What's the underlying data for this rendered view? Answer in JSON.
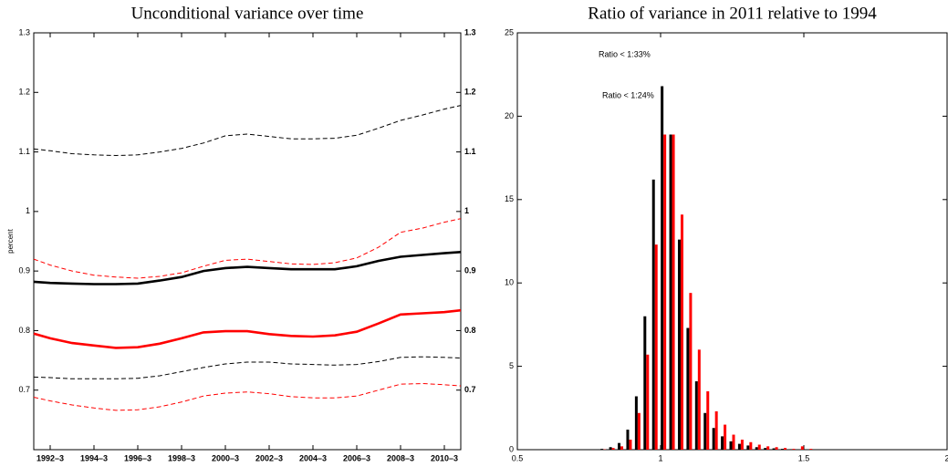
{
  "chart_data": [
    {
      "type": "line",
      "title": "Unconditional variance over time",
      "ylabel": "percent",
      "x": [
        1991.75,
        1992.5,
        1993.5,
        1994.5,
        1995.5,
        1996.5,
        1997.5,
        1998.5,
        1999.5,
        2000.5,
        2001.5,
        2002.5,
        2003.5,
        2004.5,
        2005.5,
        2006.5,
        2007.5,
        2008.5,
        2009.5,
        2010.5,
        2011.25
      ],
      "xlim": [
        1991.75,
        2011.25
      ],
      "xticks": [
        {
          "value": 1992.5,
          "label": "1992–3"
        },
        {
          "value": 1994.5,
          "label": "1994–3"
        },
        {
          "value": 1996.5,
          "label": "1996–3"
        },
        {
          "value": 1998.5,
          "label": "1998–3"
        },
        {
          "value": 2000.5,
          "label": "2000–3"
        },
        {
          "value": 2002.5,
          "label": "2002–3"
        },
        {
          "value": 2004.5,
          "label": "2004–3"
        },
        {
          "value": 2006.5,
          "label": "2006–3"
        },
        {
          "value": 2008.5,
          "label": "2008–3"
        },
        {
          "value": 2010.5,
          "label": "2010–3"
        }
      ],
      "ylim": [
        0.6,
        1.3
      ],
      "yticks": [
        0.7,
        0.8,
        0.9,
        1,
        1.1,
        1.2,
        1.3
      ],
      "right_ticks": true,
      "series": [
        {
          "color": "#000000",
          "style": "dashed",
          "values": [
            1.105,
            1.102,
            1.097,
            1.095,
            1.094,
            1.095,
            1.1,
            1.106,
            1.115,
            1.127,
            1.13,
            1.126,
            1.122,
            1.122,
            1.123,
            1.128,
            1.14,
            1.153,
            1.162,
            1.172,
            1.178
          ]
        },
        {
          "color": "#ff0000",
          "style": "dashed",
          "values": [
            0.92,
            0.91,
            0.9,
            0.893,
            0.89,
            0.888,
            0.891,
            0.897,
            0.908,
            0.918,
            0.92,
            0.916,
            0.912,
            0.911,
            0.914,
            0.922,
            0.94,
            0.965,
            0.972,
            0.982,
            0.988
          ]
        },
        {
          "color": "#000000",
          "style": "solid",
          "values": [
            0.882,
            0.88,
            0.879,
            0.878,
            0.878,
            0.879,
            0.884,
            0.89,
            0.9,
            0.905,
            0.907,
            0.905,
            0.903,
            0.903,
            0.903,
            0.908,
            0.917,
            0.924,
            0.927,
            0.93,
            0.932
          ]
        },
        {
          "color": "#ff0000",
          "style": "solid",
          "values": [
            0.795,
            0.787,
            0.779,
            0.775,
            0.771,
            0.772,
            0.778,
            0.787,
            0.797,
            0.799,
            0.799,
            0.794,
            0.791,
            0.79,
            0.792,
            0.798,
            0.812,
            0.827,
            0.829,
            0.831,
            0.834
          ]
        },
        {
          "color": "#000000",
          "style": "dashed",
          "values": [
            0.722,
            0.721,
            0.719,
            0.719,
            0.719,
            0.72,
            0.724,
            0.731,
            0.738,
            0.744,
            0.747,
            0.747,
            0.744,
            0.743,
            0.742,
            0.743,
            0.748,
            0.755,
            0.756,
            0.755,
            0.754
          ]
        },
        {
          "color": "#ff0000",
          "style": "dashed",
          "values": [
            0.688,
            0.682,
            0.675,
            0.67,
            0.666,
            0.667,
            0.672,
            0.68,
            0.69,
            0.695,
            0.697,
            0.694,
            0.689,
            0.687,
            0.687,
            0.69,
            0.7,
            0.71,
            0.711,
            0.709,
            0.707
          ]
        }
      ]
    },
    {
      "type": "bar",
      "title": "Ratio of variance in 2011 relative to 1994",
      "annotations": [
        {
          "text": "Ratio < 1:33%",
          "color": "#000000"
        },
        {
          "text": "Ratio < 1:24%",
          "color": "#ff0000"
        }
      ],
      "x": [
        0.8,
        0.83,
        0.86,
        0.89,
        0.92,
        0.95,
        0.98,
        1.01,
        1.04,
        1.07,
        1.1,
        1.13,
        1.16,
        1.19,
        1.22,
        1.25,
        1.28,
        1.31,
        1.34,
        1.37,
        1.4,
        1.43,
        1.46,
        1.49,
        1.52
      ],
      "xlim": [
        0.5,
        2
      ],
      "xticks": [
        0.5,
        1,
        1.5,
        2
      ],
      "ylim": [
        0,
        25
      ],
      "yticks": [
        0,
        5,
        10,
        15,
        20,
        25
      ],
      "series": [
        {
          "color": "#000000",
          "values": [
            0.05,
            0.15,
            0.4,
            1.2,
            3.2,
            8.0,
            16.2,
            21.8,
            18.9,
            12.6,
            7.3,
            4.1,
            2.2,
            1.3,
            0.8,
            0.5,
            0.35,
            0.25,
            0.15,
            0.1,
            0.08,
            0.05,
            0.03,
            0.02,
            0.01
          ]
        },
        {
          "color": "#ff0000",
          "values": [
            0.02,
            0.1,
            0.2,
            0.6,
            2.2,
            5.7,
            12.3,
            18.9,
            18.9,
            14.1,
            9.4,
            6.0,
            3.5,
            2.3,
            1.5,
            0.9,
            0.6,
            0.45,
            0.3,
            0.2,
            0.15,
            0.1,
            0.05,
            0.2,
            0.05
          ]
        }
      ]
    }
  ]
}
